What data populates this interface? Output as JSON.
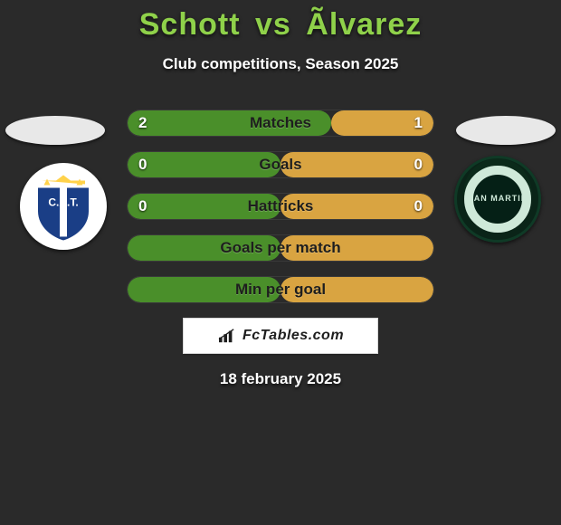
{
  "title": {
    "player1": "Schott",
    "vs": "vs",
    "player2": "Ãlvarez",
    "color": "#8fd14a"
  },
  "subtitle": "Club competitions, Season 2025",
  "footer_date": "18 february 2025",
  "watermark": "FcTables.com",
  "colors": {
    "background": "#2a2a2a",
    "bar_left": "#4a8f2a",
    "bar_right": "#d9a441",
    "bar_label": "#1e1e1e",
    "value_text": "#ffffff"
  },
  "stats": [
    {
      "label": "Matches",
      "left_value": "2",
      "right_value": "1",
      "left_pct": 66.7,
      "right_pct": 33.3,
      "show_values": true
    },
    {
      "label": "Goals",
      "left_value": "0",
      "right_value": "0",
      "left_pct": 50,
      "right_pct": 50,
      "show_values": true
    },
    {
      "label": "Hattricks",
      "left_value": "0",
      "right_value": "0",
      "left_pct": 50,
      "right_pct": 50,
      "show_values": true
    },
    {
      "label": "Goals per match",
      "left_value": "",
      "right_value": "",
      "left_pct": 50,
      "right_pct": 50,
      "show_values": false
    },
    {
      "label": "Min per goal",
      "left_value": "",
      "right_value": "",
      "left_pct": 50,
      "right_pct": 50,
      "show_values": false
    }
  ],
  "badges": {
    "left_name": "team-badge-left",
    "right_name": "team-badge-right",
    "right_text": "SAN MARTIN"
  }
}
